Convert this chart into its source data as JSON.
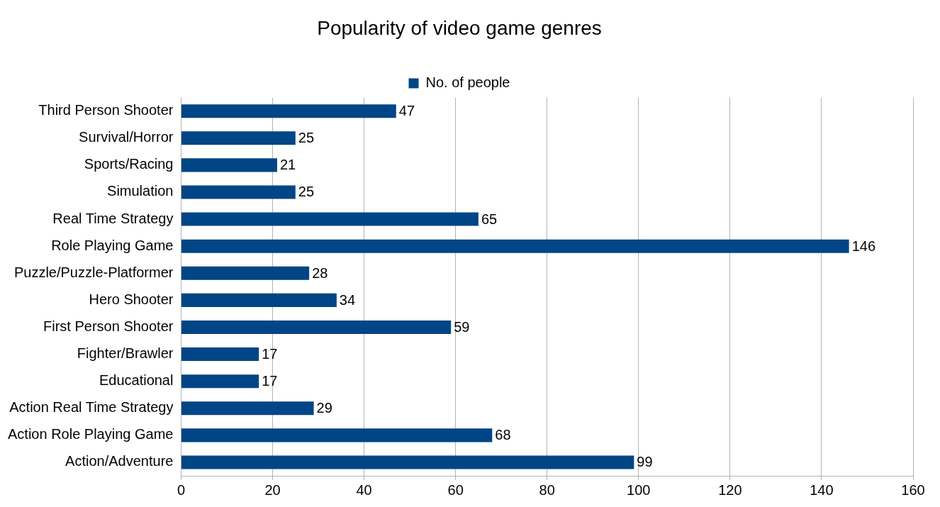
{
  "chart_data": {
    "type": "bar",
    "orientation": "horizontal",
    "title": "Popularity of video game genres",
    "categories": [
      "Third Person Shooter",
      "Survival/Horror",
      "Sports/Racing",
      "Simulation",
      "Real Time Strategy",
      "Role Playing Game",
      "Puzzle/Puzzle-Platformer",
      "Hero Shooter",
      "First Person Shooter",
      "Fighter/Brawler",
      "Educational",
      "Action Real Time Strategy",
      "Action Role Playing Game",
      "Action/Adventure"
    ],
    "series": [
      {
        "name": "No. of people",
        "color": "#004586",
        "values": [
          47,
          25,
          21,
          25,
          65,
          146,
          28,
          34,
          59,
          17,
          17,
          29,
          68,
          99
        ]
      }
    ],
    "xlim": [
      0,
      160
    ],
    "xticks": [
      0,
      20,
      40,
      60,
      80,
      100,
      120,
      140,
      160
    ],
    "grid": "x",
    "legend": "top",
    "data_labels": true
  }
}
